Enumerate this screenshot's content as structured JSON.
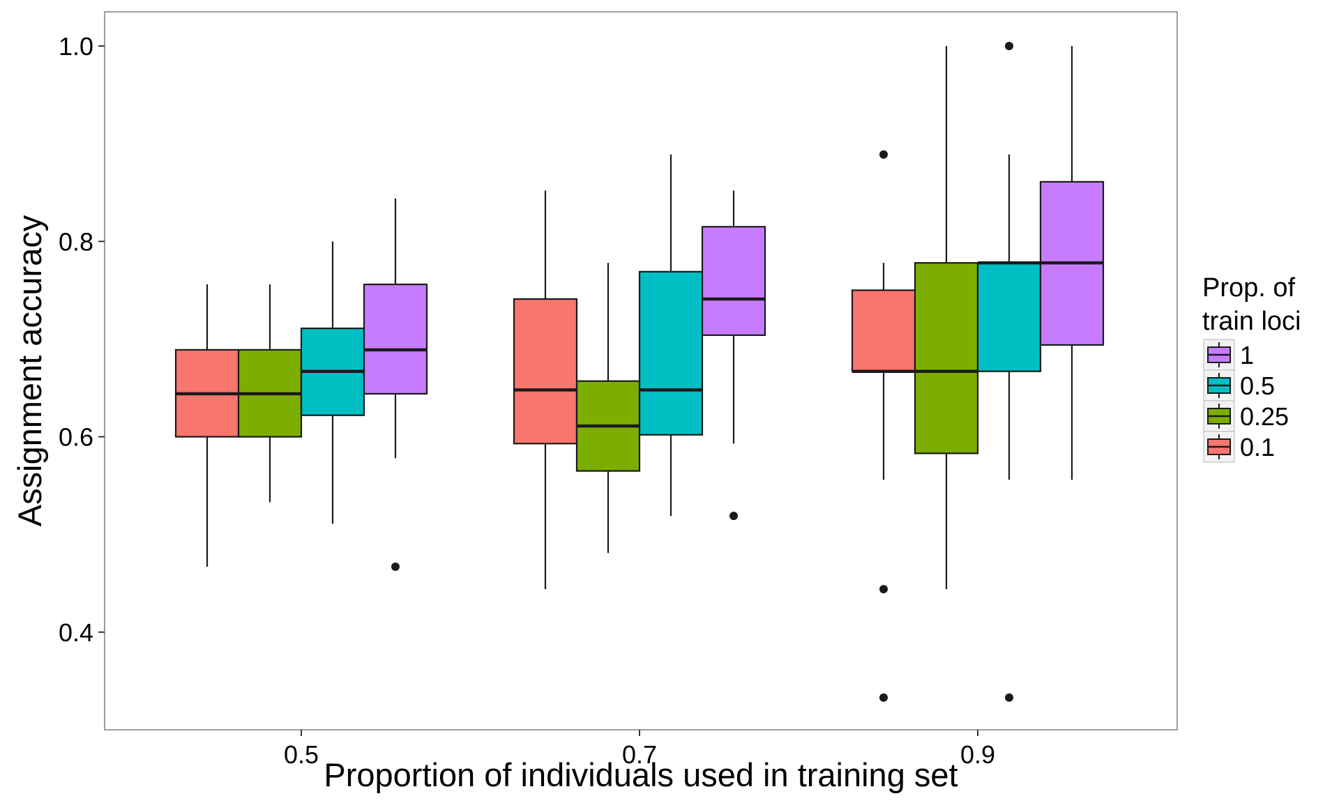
{
  "chart_data": {
    "type": "boxplot",
    "title": "",
    "xlabel": "Proportion of individuals used in training set",
    "ylabel": "Assignment accuracy",
    "ylim": [
      0.3,
      1.035
    ],
    "y_ticks": [
      0.4,
      0.6,
      0.8,
      1.0
    ],
    "y_tick_labels": [
      "0.4",
      "0.6",
      "0.8",
      "1.0"
    ],
    "categories": [
      "0.5",
      "0.7",
      "0.9"
    ],
    "grid": false,
    "legend": {
      "title_line1": "Prop. of",
      "title_line2": "train loci",
      "placement": "right",
      "order": [
        "1",
        "0.5",
        "0.25",
        "0.1"
      ]
    },
    "series": [
      {
        "name": "0.1",
        "color": "#F8766D",
        "boxes": [
          {
            "category": "0.5",
            "lower": 0.467,
            "q1": 0.6,
            "median": 0.644,
            "q3": 0.689,
            "upper": 0.756,
            "outliers": []
          },
          {
            "category": "0.7",
            "lower": 0.444,
            "q1": 0.593,
            "median": 0.648,
            "q3": 0.741,
            "upper": 0.852,
            "outliers": []
          },
          {
            "category": "0.9",
            "lower": 0.556,
            "q1": 0.667,
            "median": 0.667,
            "q3": 0.75,
            "upper": 0.778,
            "outliers": [
              0.889,
              0.444,
              0.333
            ]
          }
        ]
      },
      {
        "name": "0.25",
        "color": "#7CAE00",
        "boxes": [
          {
            "category": "0.5",
            "lower": 0.533,
            "q1": 0.6,
            "median": 0.644,
            "q3": 0.689,
            "upper": 0.756,
            "outliers": []
          },
          {
            "category": "0.7",
            "lower": 0.481,
            "q1": 0.565,
            "median": 0.611,
            "q3": 0.657,
            "upper": 0.778,
            "outliers": []
          },
          {
            "category": "0.9",
            "lower": 0.444,
            "q1": 0.583,
            "median": 0.667,
            "q3": 0.778,
            "upper": 1.0,
            "outliers": []
          }
        ]
      },
      {
        "name": "0.5",
        "color": "#00BFC4",
        "boxes": [
          {
            "category": "0.5",
            "lower": 0.511,
            "q1": 0.622,
            "median": 0.667,
            "q3": 0.711,
            "upper": 0.8,
            "outliers": []
          },
          {
            "category": "0.7",
            "lower": 0.519,
            "q1": 0.602,
            "median": 0.648,
            "q3": 0.769,
            "upper": 0.889,
            "outliers": []
          },
          {
            "category": "0.9",
            "lower": 0.556,
            "q1": 0.667,
            "median": 0.778,
            "q3": 0.778,
            "upper": 0.889,
            "outliers": [
              1.0,
              0.333
            ]
          }
        ]
      },
      {
        "name": "1",
        "color": "#C77CFF",
        "boxes": [
          {
            "category": "0.5",
            "lower": 0.578,
            "q1": 0.644,
            "median": 0.689,
            "q3": 0.756,
            "upper": 0.844,
            "outliers": [
              0.467
            ]
          },
          {
            "category": "0.7",
            "lower": 0.593,
            "q1": 0.704,
            "median": 0.741,
            "q3": 0.815,
            "upper": 0.852,
            "outliers": [
              0.519
            ]
          },
          {
            "category": "0.9",
            "lower": 0.556,
            "q1": 0.694,
            "median": 0.778,
            "q3": 0.861,
            "upper": 1.0,
            "outliers": []
          }
        ]
      }
    ]
  }
}
